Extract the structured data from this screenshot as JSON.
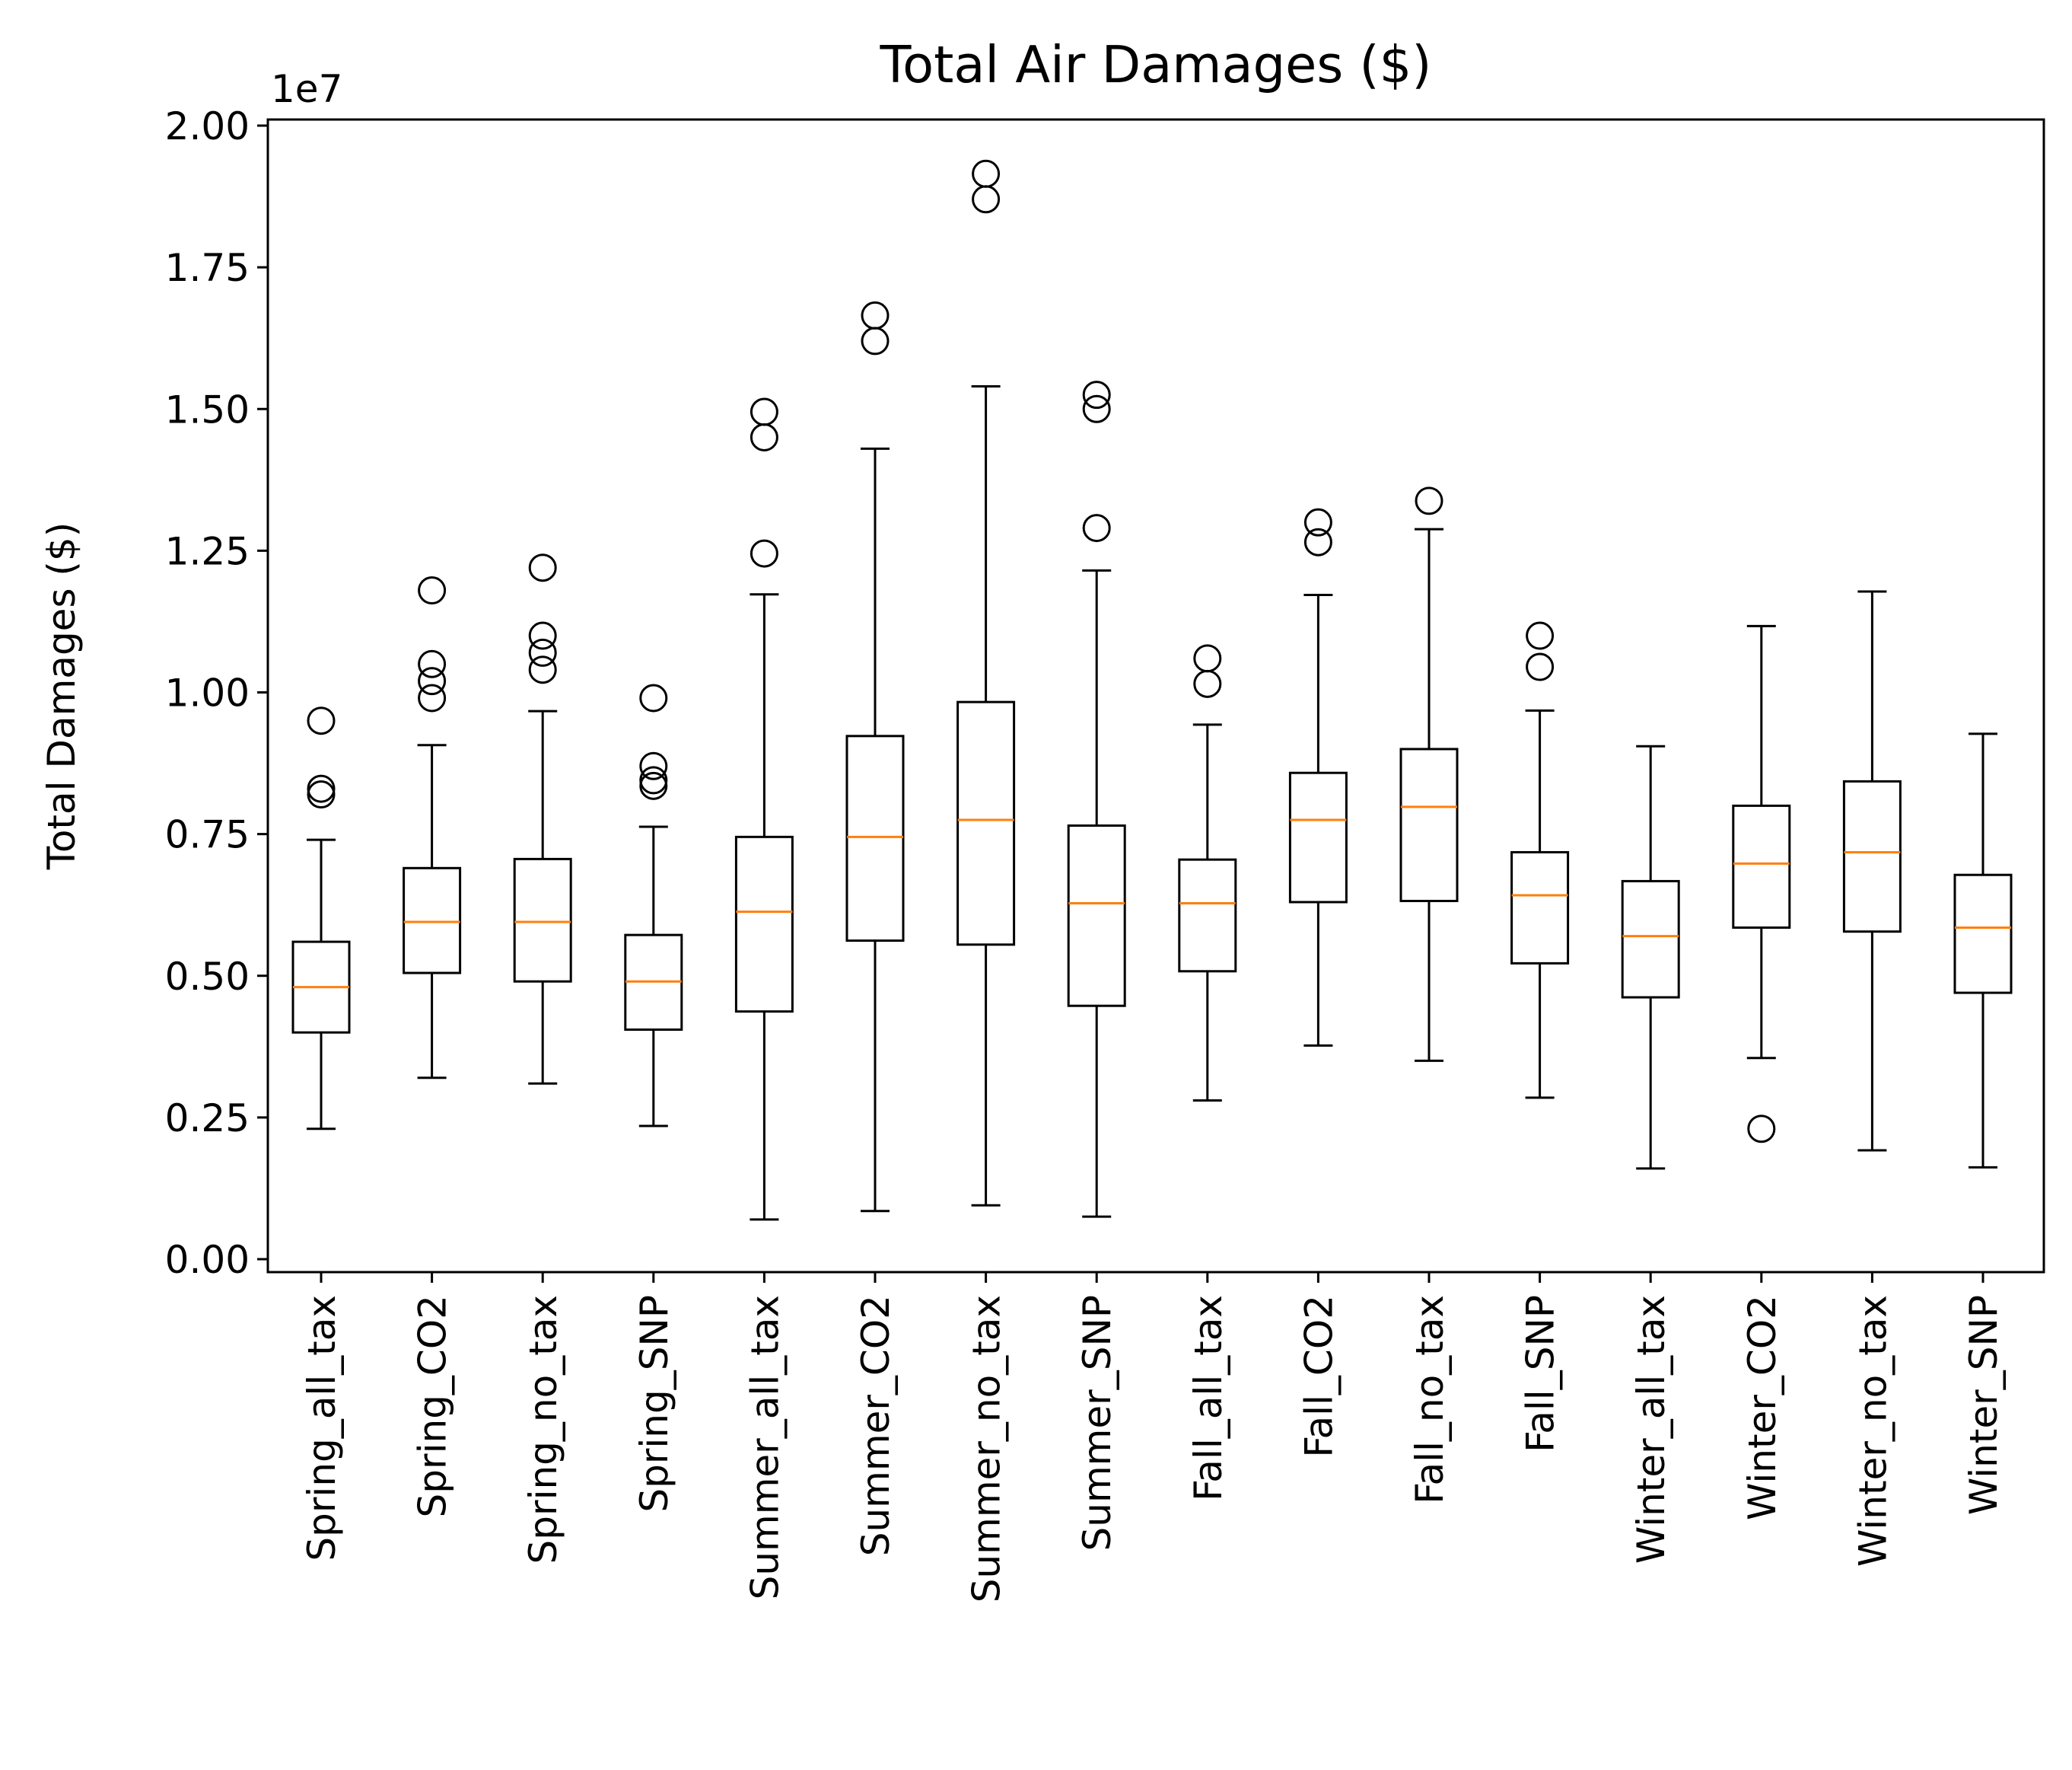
{
  "chart_data": {
    "type": "boxplot",
    "title": "Total Air Damages ($)",
    "xlabel": "",
    "ylabel": "Total Damages ($)",
    "y_offset_label": "1e7",
    "ylim": [
      -0.02,
      2.01
    ],
    "y_ticks": [
      0.0,
      0.25,
      0.5,
      0.75,
      1.0,
      1.25,
      1.5,
      1.75,
      2.0
    ],
    "y_tick_labels": [
      "0.00",
      "0.25",
      "0.50",
      "0.75",
      "1.00",
      "1.25",
      "1.50",
      "1.75",
      "2.00"
    ],
    "grid": false,
    "colors": {
      "box": "#000000",
      "median": "#ff7f0e",
      "background": "#ffffff"
    },
    "categories": [
      "Spring_all_tax",
      "Spring_CO2",
      "Spring_no_tax",
      "Spring_SNP",
      "Summer_all_tax",
      "Summer_CO2",
      "Summer_no_tax",
      "Summer_SNP",
      "Fall_all_tax",
      "Fall_CO2",
      "Fall_no_tax",
      "Fall_SNP",
      "Winter_all_tax",
      "Winter_CO2",
      "Winter_no_tax",
      "Winter_SNP"
    ],
    "boxes": [
      {
        "whislo": 0.23,
        "q1": 0.4,
        "med": 0.48,
        "q3": 0.56,
        "whishi": 0.74,
        "fliers": [
          0.82,
          0.83,
          0.95
        ]
      },
      {
        "whislo": 0.32,
        "q1": 0.505,
        "med": 0.595,
        "q3": 0.69,
        "whishi": 0.907,
        "fliers": [
          0.99,
          1.02,
          1.05,
          1.18
        ]
      },
      {
        "whislo": 0.31,
        "q1": 0.49,
        "med": 0.595,
        "q3": 0.706,
        "whishi": 0.967,
        "fliers": [
          1.04,
          1.07,
          1.1,
          1.22
        ]
      },
      {
        "whislo": 0.235,
        "q1": 0.405,
        "med": 0.49,
        "q3": 0.572,
        "whishi": 0.763,
        "fliers": [
          0.835,
          0.845,
          0.87,
          0.99
        ]
      },
      {
        "whislo": 0.07,
        "q1": 0.437,
        "med": 0.613,
        "q3": 0.745,
        "whishi": 1.173,
        "fliers": [
          1.245,
          1.45,
          1.495
        ]
      },
      {
        "whislo": 0.085,
        "q1": 0.562,
        "med": 0.745,
        "q3": 0.923,
        "whishi": 1.43,
        "fliers": [
          1.62,
          1.665
        ]
      },
      {
        "whislo": 0.095,
        "q1": 0.555,
        "med": 0.775,
        "q3": 0.983,
        "whishi": 1.54,
        "fliers": [
          1.87,
          1.915
        ]
      },
      {
        "whislo": 0.075,
        "q1": 0.447,
        "med": 0.628,
        "q3": 0.765,
        "whishi": 1.215,
        "fliers": [
          1.29,
          1.5,
          1.525
        ]
      },
      {
        "whislo": 0.28,
        "q1": 0.508,
        "med": 0.628,
        "q3": 0.705,
        "whishi": 0.943,
        "fliers": [
          1.015,
          1.06
        ]
      },
      {
        "whislo": 0.377,
        "q1": 0.63,
        "med": 0.775,
        "q3": 0.858,
        "whishi": 1.172,
        "fliers": [
          1.265,
          1.3
        ]
      },
      {
        "whislo": 0.35,
        "q1": 0.632,
        "med": 0.798,
        "q3": 0.9,
        "whishi": 1.288,
        "fliers": [
          1.338
        ]
      },
      {
        "whislo": 0.285,
        "q1": 0.522,
        "med": 0.642,
        "q3": 0.718,
        "whishi": 0.968,
        "fliers": [
          1.045,
          1.1
        ]
      },
      {
        "whislo": 0.16,
        "q1": 0.462,
        "med": 0.57,
        "q3": 0.667,
        "whishi": 0.905,
        "fliers": []
      },
      {
        "whislo": 0.355,
        "q1": 0.585,
        "med": 0.698,
        "q3": 0.8,
        "whishi": 1.117,
        "fliers": [
          0.23
        ]
      },
      {
        "whislo": 0.192,
        "q1": 0.578,
        "med": 0.718,
        "q3": 0.843,
        "whishi": 1.178,
        "fliers": []
      },
      {
        "whislo": 0.162,
        "q1": 0.47,
        "med": 0.585,
        "q3": 0.678,
        "whishi": 0.927,
        "fliers": []
      }
    ]
  }
}
